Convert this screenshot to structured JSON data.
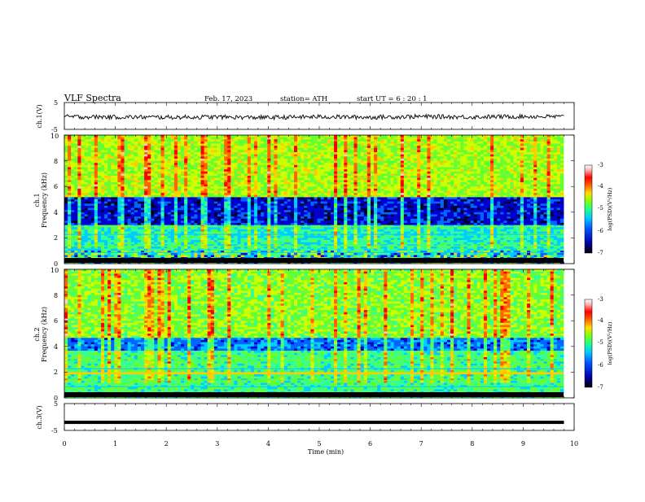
{
  "header": {
    "title": "VLF  Spectra",
    "date": "Feb. 17, 2023",
    "station": "station= ATH",
    "start": "start  UT  =    6  : 20 : 1"
  },
  "chart_data": [
    {
      "type": "line",
      "panel": "ch1-waveform",
      "ylabel": "ch.1(V)",
      "ylim": [
        -5,
        5
      ],
      "yticks": [
        "5",
        "-5"
      ],
      "x": [
        0,
        1,
        2,
        3,
        4,
        5,
        6,
        7,
        8,
        9,
        9.8
      ],
      "values": [
        -0.3,
        -0.4,
        -0.5,
        -0.4,
        -0.6,
        -0.3,
        -0.5,
        -0.2,
        -0.4,
        -0.2,
        -0.3
      ]
    },
    {
      "type": "heatmap",
      "panel": "ch1-spectrogram",
      "ylabel": "ch.1\nFrequency  (kHz)",
      "ylim": [
        0,
        10
      ],
      "yticks": [
        "0",
        "2",
        "4",
        "6",
        "8",
        "10"
      ],
      "colorbar": {
        "label": "log(PSD)(V²/Hz)",
        "range": [
          -7,
          -3
        ],
        "ticks": [
          "-3",
          "-4",
          "-5",
          "-6",
          "-7"
        ]
      }
    },
    {
      "type": "heatmap",
      "panel": "ch2-spectrogram",
      "ylabel": "ch.2\nFrequency  (kHz)",
      "ylim": [
        0,
        10
      ],
      "yticks": [
        "0",
        "2",
        "4",
        "6",
        "8",
        "10"
      ],
      "colorbar": {
        "label": "log(PSD)(V²/Hz)",
        "range": [
          -7,
          -3
        ],
        "ticks": [
          "-3",
          "-4",
          "-5",
          "-6",
          "-7"
        ]
      }
    },
    {
      "type": "line",
      "panel": "ch3-waveform",
      "ylabel": "ch.3(V)",
      "ylim": [
        -5,
        5
      ],
      "yticks": [
        "5",
        "-5"
      ],
      "x": [
        0,
        9.8
      ],
      "values": [
        -2,
        -2
      ]
    }
  ],
  "xaxis": {
    "label": "Time  (min)",
    "range": [
      0,
      10
    ],
    "ticks": [
      "0",
      "1",
      "2",
      "3",
      "4",
      "5",
      "6",
      "7",
      "8",
      "9",
      "10"
    ]
  },
  "colors": {
    "colormap": [
      "#000033",
      "#0000cc",
      "#0066ff",
      "#00ccff",
      "#33ff99",
      "#66ff33",
      "#ccff00",
      "#ffcc00",
      "#ff6600",
      "#ff0000",
      "#ffcccc",
      "#ffffff"
    ]
  }
}
